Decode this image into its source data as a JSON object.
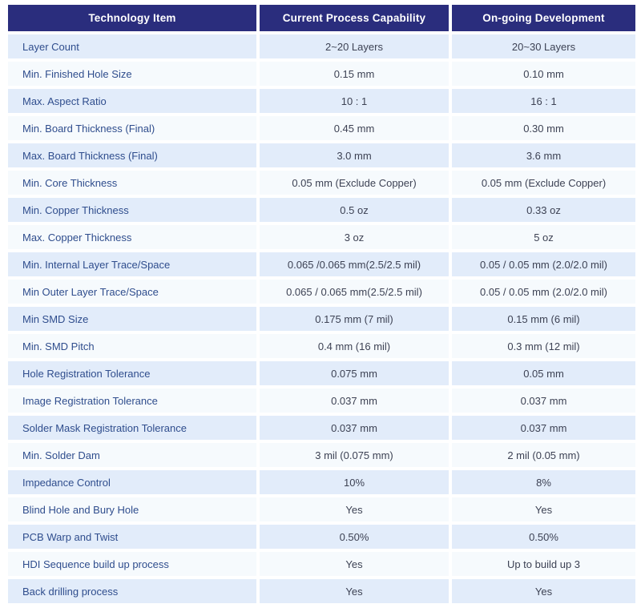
{
  "table": {
    "columns": [
      {
        "label": "Technology Item"
      },
      {
        "label": "Current Process Capability"
      },
      {
        "label": "On-going Development"
      }
    ],
    "rows": [
      {
        "item": "Layer Count",
        "current": "2~20 Layers",
        "development": "20~30 Layers"
      },
      {
        "item": "Min. Finished Hole Size",
        "current": "0.15 mm",
        "development": "0.10 mm"
      },
      {
        "item": "Max. Aspect Ratio",
        "current": "10 : 1",
        "development": "16 : 1"
      },
      {
        "item": "Min. Board Thickness (Final)",
        "current": "0.45 mm",
        "development": "0.30 mm"
      },
      {
        "item": "Max. Board Thickness (Final)",
        "current": "3.0 mm",
        "development": "3.6 mm"
      },
      {
        "item": "Min. Core Thickness",
        "current": "0.05 mm (Exclude Copper)",
        "development": "0.05 mm (Exclude Copper)"
      },
      {
        "item": "Min. Copper Thickness",
        "current": "0.5 oz",
        "development": "0.33 oz"
      },
      {
        "item": "Max. Copper Thickness",
        "current": "3 oz",
        "development": "5 oz"
      },
      {
        "item": "Min. Internal Layer Trace/Space",
        "current": "0.065 /0.065 mm(2.5/2.5 mil)",
        "development": "0.05 / 0.05 mm (2.0/2.0 mil)"
      },
      {
        "item": "Min Outer Layer Trace/Space",
        "current": "0.065 / 0.065 mm(2.5/2.5 mil)",
        "development": "0.05 / 0.05 mm (2.0/2.0 mil)"
      },
      {
        "item": "Min SMD Size",
        "current": "0.175 mm (7 mil)",
        "development": "0.15 mm (6 mil)"
      },
      {
        "item": "Min. SMD Pitch",
        "current": "0.4 mm (16 mil)",
        "development": "0.3 mm (12 mil)"
      },
      {
        "item": "Hole Registration Tolerance",
        "current": "0.075 mm",
        "development": "0.05 mm"
      },
      {
        "item": "Image Registration Tolerance",
        "current": "0.037 mm",
        "development": "0.037 mm"
      },
      {
        "item": "Solder Mask Registration Tolerance",
        "current": "0.037 mm",
        "development": "0.037 mm"
      },
      {
        "item": "Min. Solder Dam",
        "current": "3 mil (0.075 mm)",
        "development": "2 mil (0.05 mm)"
      },
      {
        "item": "Impedance Control",
        "current": "10%",
        "development": "8%"
      },
      {
        "item": "Blind Hole and Bury Hole",
        "current": "Yes",
        "development": "Yes"
      },
      {
        "item": "PCB Warp and Twist",
        "current": "0.50%",
        "development": "0.50%"
      },
      {
        "item": "HDI Sequence build up process",
        "current": "Yes",
        "development": "Up to build up 3"
      },
      {
        "item": "Back drilling process",
        "current": "Yes",
        "development": "Yes"
      }
    ]
  },
  "colors": {
    "header_bg": "#2a2d7d",
    "header_text": "#ffffff",
    "row_alt_bg": "#e2ecfa",
    "row_bg": "#f6fafd",
    "item_text": "#2f4d8d",
    "value_text": "#3d4254",
    "page_bg": "#ffffff"
  }
}
